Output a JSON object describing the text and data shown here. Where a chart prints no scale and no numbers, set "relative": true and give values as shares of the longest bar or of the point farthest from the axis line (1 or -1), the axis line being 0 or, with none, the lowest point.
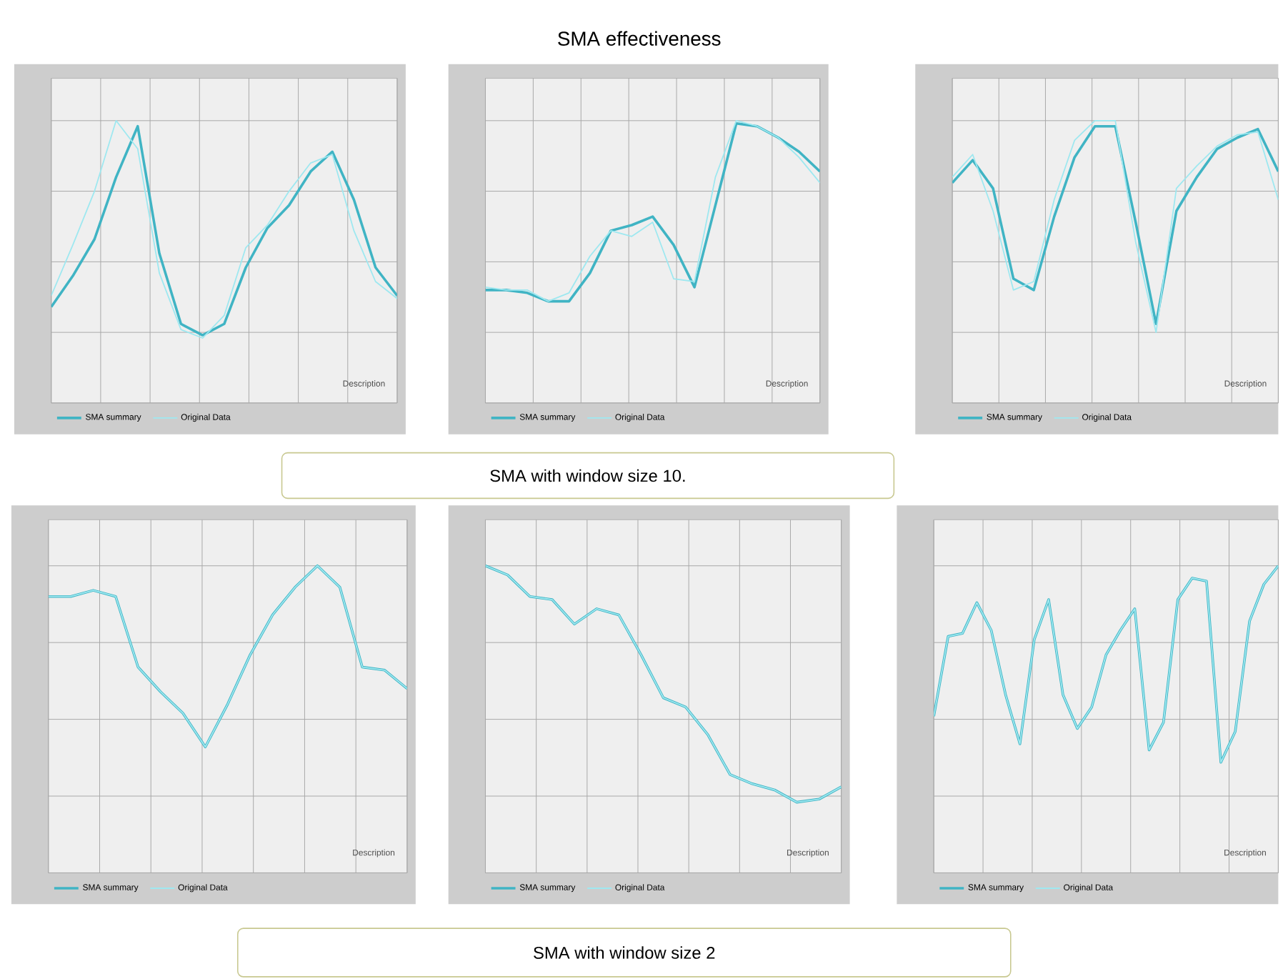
{
  "chart_data": [
    {
      "type": "line",
      "relative": true,
      "grid": true,
      "legend": "bottom left",
      "tick_labels": false,
      "annotations": [
        "Description"
      ],
      "categories": [
        null,
        null,
        null,
        null,
        null,
        null,
        null,
        null,
        null,
        null,
        null,
        null,
        null,
        null,
        null,
        null,
        null
      ],
      "series": [
        {
          "name": "SMA summary",
          "color": "#40b4c4",
          "values": [
            0.34,
            0.45,
            0.58,
            0.8,
            0.98,
            0.53,
            0.28,
            0.24,
            0.28,
            0.48,
            0.62,
            0.7,
            0.82,
            0.89,
            0.72,
            0.48,
            0.38
          ]
        },
        {
          "name": "Original Data",
          "color": "#9ee8f0",
          "values": [
            0.38,
            0.56,
            0.75,
            1.0,
            0.9,
            0.46,
            0.26,
            0.23,
            0.31,
            0.55,
            0.63,
            0.75,
            0.85,
            0.88,
            0.61,
            0.43,
            0.37
          ]
        }
      ]
    },
    {
      "type": "line",
      "relative": true,
      "grid": true,
      "legend": "bottom left",
      "tick_labels": false,
      "title": "SMA effectiveness",
      "annotations": [
        "Description",
        "SMA with window size 10."
      ],
      "categories": [
        null,
        null,
        null,
        null,
        null,
        null,
        null,
        null,
        null,
        null,
        null,
        null,
        null,
        null,
        null,
        null,
        null
      ],
      "series": [
        {
          "name": "SMA summary",
          "color": "#40b4c4",
          "values": [
            0.4,
            0.4,
            0.39,
            0.36,
            0.36,
            0.46,
            0.61,
            0.63,
            0.66,
            0.56,
            0.41,
            0.7,
            0.99,
            0.98,
            0.94,
            0.89,
            0.82
          ]
        },
        {
          "name": "Original Data",
          "color": "#9ee8f0",
          "values": [
            0.41,
            0.4,
            0.4,
            0.36,
            0.39,
            0.52,
            0.61,
            0.59,
            0.64,
            0.44,
            0.43,
            0.8,
            1.0,
            0.98,
            0.94,
            0.87,
            0.78
          ]
        }
      ]
    },
    {
      "type": "line",
      "relative": true,
      "grid": true,
      "legend": "bottom left",
      "tick_labels": false,
      "annotations": [
        "Description"
      ],
      "categories": [
        null,
        null,
        null,
        null,
        null,
        null,
        null,
        null,
        null,
        null,
        null,
        null,
        null,
        null,
        null,
        null,
        null
      ],
      "series": [
        {
          "name": "SMA summary",
          "color": "#40b4c4",
          "values": [
            0.78,
            0.86,
            0.76,
            0.44,
            0.4,
            0.66,
            0.87,
            0.98,
            0.98,
            0.64,
            0.28,
            0.68,
            0.8,
            0.9,
            0.94,
            0.97,
            0.82
          ]
        },
        {
          "name": "Original Data",
          "color": "#9ee8f0",
          "values": [
            0.8,
            0.88,
            0.68,
            0.4,
            0.43,
            0.72,
            0.93,
            1.0,
            1.0,
            0.57,
            0.25,
            0.76,
            0.84,
            0.91,
            0.95,
            0.96,
            0.72
          ]
        }
      ]
    },
    {
      "type": "line",
      "relative": true,
      "grid": true,
      "legend": "bottom left",
      "tick_labels": false,
      "annotations": [
        "Description"
      ],
      "categories": [
        null,
        null,
        null,
        null,
        null,
        null,
        null,
        null,
        null,
        null,
        null,
        null,
        null,
        null,
        null,
        null,
        null
      ],
      "series": [
        {
          "name": "SMA summary",
          "color": "#40b4c4",
          "values": [
            0.9,
            0.9,
            0.92,
            0.9,
            0.67,
            0.59,
            0.52,
            0.41,
            0.55,
            0.71,
            0.84,
            0.93,
            1.0,
            0.93,
            0.67,
            0.66,
            0.6
          ]
        },
        {
          "name": "Original Data",
          "color": "#9ee8f0",
          "values": [
            0.9,
            0.9,
            0.92,
            0.9,
            0.67,
            0.59,
            0.52,
            0.41,
            0.55,
            0.71,
            0.84,
            0.93,
            1.0,
            0.93,
            0.67,
            0.66,
            0.6
          ]
        }
      ]
    },
    {
      "type": "line",
      "relative": true,
      "grid": true,
      "legend": "bottom left",
      "tick_labels": false,
      "annotations": [
        "Description",
        "SMA with window size 2"
      ],
      "categories": [
        null,
        null,
        null,
        null,
        null,
        null,
        null,
        null,
        null,
        null,
        null,
        null,
        null,
        null,
        null,
        null,
        null
      ],
      "series": [
        {
          "name": "SMA summary",
          "color": "#40b4c4",
          "values": [
            1.0,
            0.97,
            0.9,
            0.89,
            0.81,
            0.86,
            0.84,
            0.71,
            0.57,
            0.54,
            0.45,
            0.32,
            0.29,
            0.27,
            0.23,
            0.24,
            0.28
          ]
        },
        {
          "name": "Original Data",
          "color": "#9ee8f0",
          "values": [
            1.0,
            0.97,
            0.9,
            0.89,
            0.81,
            0.86,
            0.84,
            0.71,
            0.57,
            0.54,
            0.45,
            0.32,
            0.29,
            0.27,
            0.23,
            0.24,
            0.28
          ]
        }
      ]
    },
    {
      "type": "line",
      "relative": true,
      "grid": true,
      "legend": "bottom left",
      "tick_labels": false,
      "annotations": [
        "Description"
      ],
      "categories": [
        null,
        null,
        null,
        null,
        null,
        null,
        null,
        null,
        null,
        null,
        null,
        null,
        null,
        null,
        null,
        null,
        null,
        null,
        null,
        null,
        null,
        null,
        null,
        null,
        null
      ],
      "series": [
        {
          "name": "SMA summary",
          "color": "#40b4c4",
          "values": [
            0.51,
            0.77,
            0.78,
            0.88,
            0.79,
            0.58,
            0.42,
            0.76,
            0.89,
            0.58,
            0.47,
            0.54,
            0.71,
            0.79,
            0.86,
            0.4,
            0.49,
            0.89,
            0.96,
            0.95,
            0.36,
            0.46,
            0.82,
            0.94,
            1.0
          ]
        },
        {
          "name": "Original Data",
          "color": "#9ee8f0",
          "values": [
            0.51,
            0.77,
            0.78,
            0.88,
            0.79,
            0.58,
            0.42,
            0.76,
            0.89,
            0.58,
            0.47,
            0.54,
            0.71,
            0.79,
            0.86,
            0.4,
            0.49,
            0.89,
            0.96,
            0.95,
            0.36,
            0.46,
            0.82,
            0.94,
            1.0
          ]
        }
      ]
    }
  ]
}
